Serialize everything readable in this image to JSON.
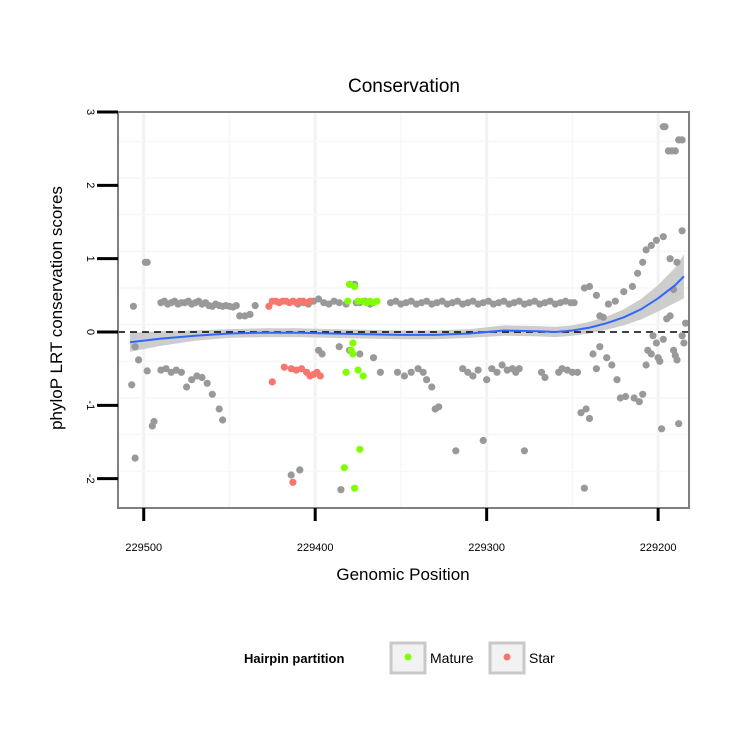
{
  "chart_data": {
    "type": "scatter",
    "title": "Conservation",
    "xlabel": "Genomic Position",
    "ylabel": "phyloP LRT conservation scores",
    "x_reversed": true,
    "xlim": [
      229182,
      229515
    ],
    "ylim": [
      -2.4,
      3.0
    ],
    "x_ticks": [
      229500,
      229400,
      229300,
      229200
    ],
    "x_tick_labels": [
      "229500",
      "229400",
      "229300",
      "229200"
    ],
    "y_ticks": [
      3,
      2,
      1,
      0,
      -1,
      -2
    ],
    "y_tick_labels": [
      "3",
      "2",
      "1",
      "0",
      "-1",
      "-2"
    ],
    "grid": true,
    "reference_line": {
      "y": 0,
      "style": "dashed"
    },
    "legend": {
      "title": "Hairpin partition",
      "position": "bottom",
      "entries": [
        {
          "label": "Mature",
          "color": "#7FFF00"
        },
        {
          "label": "Star",
          "color": "#F8766D"
        }
      ]
    },
    "colors": {
      "other": "#999999",
      "mature": "#7FFF00",
      "star": "#F8766D",
      "smooth": "#3366FF",
      "ribbon": "#C8C8C8"
    },
    "series": [
      {
        "group": "other",
        "points": [
          [
            229506,
            0.35
          ],
          [
            229505,
            -0.2
          ],
          [
            229507,
            -0.72
          ],
          [
            229505,
            -1.72
          ],
          [
            229503,
            -0.38
          ],
          [
            229499,
            0.95
          ],
          [
            229498,
            0.95
          ],
          [
            229498,
            -0.53
          ],
          [
            229495,
            -1.28
          ],
          [
            229494,
            -1.22
          ],
          [
            229490,
            0.4
          ],
          [
            229488,
            0.42
          ],
          [
            229486,
            0.38
          ],
          [
            229484,
            0.4
          ],
          [
            229482,
            0.42
          ],
          [
            229480,
            0.38
          ],
          [
            229478,
            0.4
          ],
          [
            229476,
            0.4
          ],
          [
            229474,
            0.42
          ],
          [
            229472,
            0.38
          ],
          [
            229470,
            0.4
          ],
          [
            229468,
            0.42
          ],
          [
            229466,
            0.38
          ],
          [
            229464,
            0.4
          ],
          [
            229462,
            0.36
          ],
          [
            229460,
            0.35
          ],
          [
            229458,
            0.38
          ],
          [
            229456,
            0.36
          ],
          [
            229454,
            0.35
          ],
          [
            229452,
            0.36
          ],
          [
            229450,
            0.35
          ],
          [
            229448,
            0.34
          ],
          [
            229446,
            0.36
          ],
          [
            229490,
            -0.52
          ],
          [
            229487,
            -0.5
          ],
          [
            229484,
            -0.55
          ],
          [
            229481,
            -0.52
          ],
          [
            229478,
            -0.55
          ],
          [
            229475,
            -0.75
          ],
          [
            229472,
            -0.65
          ],
          [
            229469,
            -0.6
          ],
          [
            229466,
            -0.62
          ],
          [
            229463,
            -0.7
          ],
          [
            229460,
            -0.85
          ],
          [
            229456,
            -1.05
          ],
          [
            229454,
            -1.2
          ],
          [
            229444,
            0.22
          ],
          [
            229441,
            0.22
          ],
          [
            229438,
            0.24
          ],
          [
            229435,
            0.36
          ],
          [
            229410,
            0.38
          ],
          [
            229407,
            0.4
          ],
          [
            229404,
            0.38
          ],
          [
            229401,
            0.42
          ],
          [
            229398,
            0.45
          ],
          [
            229395,
            0.4
          ],
          [
            229392,
            0.38
          ],
          [
            229389,
            0.42
          ],
          [
            229386,
            0.4
          ],
          [
            229382,
            0.38
          ],
          [
            229380,
            0.65
          ],
          [
            229377,
            0.65
          ],
          [
            229376,
            0.4
          ],
          [
            229374,
            0.4
          ],
          [
            229371,
            0.42
          ],
          [
            229368,
            0.38
          ],
          [
            229356,
            0.4
          ],
          [
            229353,
            0.42
          ],
          [
            229350,
            0.38
          ],
          [
            229347,
            0.4
          ],
          [
            229344,
            0.42
          ],
          [
            229341,
            0.38
          ],
          [
            229338,
            0.4
          ],
          [
            229335,
            0.42
          ],
          [
            229332,
            0.38
          ],
          [
            229329,
            0.4
          ],
          [
            229326,
            0.42
          ],
          [
            229323,
            0.38
          ],
          [
            229320,
            0.4
          ],
          [
            229317,
            0.42
          ],
          [
            229314,
            0.38
          ],
          [
            229311,
            0.4
          ],
          [
            229308,
            0.42
          ],
          [
            229305,
            0.38
          ],
          [
            229302,
            0.4
          ],
          [
            229299,
            0.42
          ],
          [
            229296,
            0.38
          ],
          [
            229293,
            0.4
          ],
          [
            229290,
            0.42
          ],
          [
            229287,
            0.38
          ],
          [
            229284,
            0.4
          ],
          [
            229281,
            0.42
          ],
          [
            229278,
            0.38
          ],
          [
            229275,
            0.4
          ],
          [
            229272,
            0.42
          ],
          [
            229269,
            0.38
          ],
          [
            229266,
            0.4
          ],
          [
            229263,
            0.42
          ],
          [
            229260,
            0.38
          ],
          [
            229257,
            0.4
          ],
          [
            229254,
            0.42
          ],
          [
            229251,
            0.4
          ],
          [
            229249,
            0.4
          ],
          [
            229398,
            -0.25
          ],
          [
            229396,
            -0.3
          ],
          [
            229386,
            -0.2
          ],
          [
            229380,
            -0.25
          ],
          [
            229374,
            -0.3
          ],
          [
            229366,
            -0.35
          ],
          [
            229362,
            -0.55
          ],
          [
            229352,
            -0.55
          ],
          [
            229348,
            -0.6
          ],
          [
            229344,
            -0.55
          ],
          [
            229340,
            -0.5
          ],
          [
            229337,
            -0.55
          ],
          [
            229335,
            -0.65
          ],
          [
            229332,
            -0.75
          ],
          [
            229330,
            -1.05
          ],
          [
            229328,
            -1.02
          ],
          [
            229318,
            -1.62
          ],
          [
            229314,
            -0.5
          ],
          [
            229311,
            -0.55
          ],
          [
            229308,
            -0.6
          ],
          [
            229305,
            -0.52
          ],
          [
            229302,
            -1.48
          ],
          [
            229300,
            -0.65
          ],
          [
            229297,
            -0.5
          ],
          [
            229294,
            -0.55
          ],
          [
            229291,
            -0.45
          ],
          [
            229288,
            -0.52
          ],
          [
            229285,
            -0.5
          ],
          [
            229283,
            -0.55
          ],
          [
            229281,
            -0.5
          ],
          [
            229278,
            -1.62
          ],
          [
            229268,
            -0.55
          ],
          [
            229266,
            -0.62
          ],
          [
            229258,
            -0.55
          ],
          [
            229256,
            -0.5
          ],
          [
            229253,
            -0.52
          ],
          [
            229250,
            -0.55
          ],
          [
            229247,
            -0.55
          ],
          [
            229245,
            -1.1
          ],
          [
            229243,
            -2.13
          ],
          [
            229242,
            -1.05
          ],
          [
            229240,
            -1.18
          ],
          [
            229238,
            -0.3
          ],
          [
            229236,
            -0.5
          ],
          [
            229234,
            -0.2
          ],
          [
            229230,
            -0.35
          ],
          [
            229227,
            -0.45
          ],
          [
            229224,
            -0.65
          ],
          [
            229222,
            -0.9
          ],
          [
            229219,
            -0.88
          ],
          [
            229214,
            -0.9
          ],
          [
            229211,
            -0.95
          ],
          [
            229209,
            -0.85
          ],
          [
            229207,
            -0.45
          ],
          [
            229206,
            -0.25
          ],
          [
            229204,
            -0.3
          ],
          [
            229203,
            -0.05
          ],
          [
            229201,
            -0.15
          ],
          [
            229200,
            -0.35
          ],
          [
            229199,
            -0.4
          ],
          [
            229198,
            -1.32
          ],
          [
            229197,
            -0.1
          ],
          [
            229195,
            0.18
          ],
          [
            229193,
            0.22
          ],
          [
            229191,
            -0.25
          ],
          [
            229190,
            -0.32
          ],
          [
            229189,
            -0.38
          ],
          [
            229188,
            -1.25
          ],
          [
            229186,
            -0.05
          ],
          [
            229185,
            -0.15
          ],
          [
            229243,
            0.6
          ],
          [
            229240,
            0.62
          ],
          [
            229236,
            0.5
          ],
          [
            229234,
            0.22
          ],
          [
            229232,
            0.2
          ],
          [
            229229,
            0.38
          ],
          [
            229225,
            0.42
          ],
          [
            229220,
            0.55
          ],
          [
            229215,
            0.62
          ],
          [
            229212,
            0.8
          ],
          [
            229209,
            0.95
          ],
          [
            229207,
            1.12
          ],
          [
            229204,
            1.18
          ],
          [
            229201,
            1.25
          ],
          [
            229197,
            1.3
          ],
          [
            229193,
            1.0
          ],
          [
            229191,
            0.58
          ],
          [
            229189,
            0.95
          ],
          [
            229186,
            1.38
          ],
          [
            229184,
            0.12
          ],
          [
            229197,
            2.8
          ],
          [
            229196,
            2.8
          ],
          [
            229194,
            2.47
          ],
          [
            229192,
            2.47
          ],
          [
            229190,
            2.47
          ],
          [
            229188,
            2.62
          ],
          [
            229186,
            2.62
          ],
          [
            229414,
            -1.95
          ],
          [
            229409,
            -1.88
          ],
          [
            229385,
            -2.15
          ]
        ]
      },
      {
        "group": "mature",
        "points": [
          [
            229380,
            0.65
          ],
          [
            229377,
            0.62
          ],
          [
            229381,
            0.42
          ],
          [
            229375,
            0.42
          ],
          [
            229372,
            0.42
          ],
          [
            229370,
            0.4
          ],
          [
            229368,
            0.42
          ],
          [
            229366,
            0.4
          ],
          [
            229364,
            0.42
          ],
          [
            229378,
            -0.15
          ],
          [
            229379,
            -0.25
          ],
          [
            229378,
            -0.3
          ],
          [
            229382,
            -0.55
          ],
          [
            229375,
            -0.52
          ],
          [
            229372,
            -0.6
          ],
          [
            229374,
            -1.6
          ],
          [
            229383,
            -1.85
          ],
          [
            229377,
            -2.13
          ]
        ]
      },
      {
        "group": "star",
        "points": [
          [
            229427,
            0.35
          ],
          [
            229425,
            0.42
          ],
          [
            229423,
            0.42
          ],
          [
            229421,
            0.4
          ],
          [
            229419,
            0.42
          ],
          [
            229417,
            0.42
          ],
          [
            229415,
            0.4
          ],
          [
            229413,
            0.42
          ],
          [
            229411,
            0.4
          ],
          [
            229409,
            0.42
          ],
          [
            229407,
            0.42
          ],
          [
            229405,
            0.4
          ],
          [
            229403,
            0.42
          ],
          [
            229418,
            -0.48
          ],
          [
            229414,
            -0.5
          ],
          [
            229411,
            -0.52
          ],
          [
            229408,
            -0.5
          ],
          [
            229405,
            -0.55
          ],
          [
            229403,
            -0.6
          ],
          [
            229401,
            -0.58
          ],
          [
            229399,
            -0.55
          ],
          [
            229397,
            -0.6
          ],
          [
            229425,
            -0.68
          ],
          [
            229413,
            -2.05
          ]
        ]
      }
    ],
    "smooth": {
      "x": [
        229508,
        229490,
        229470,
        229450,
        229430,
        229410,
        229390,
        229370,
        229350,
        229330,
        229310,
        229290,
        229270,
        229260,
        229250,
        229240,
        229230,
        229220,
        229210,
        229200,
        229190,
        229185
      ],
      "y": [
        -0.14,
        -0.09,
        -0.05,
        -0.02,
        -0.01,
        -0.01,
        -0.02,
        -0.03,
        -0.04,
        -0.04,
        -0.02,
        0.02,
        0.01,
        0.0,
        0.02,
        0.06,
        0.12,
        0.2,
        0.31,
        0.46,
        0.64,
        0.76
      ],
      "lower": [
        -0.27,
        -0.19,
        -0.12,
        -0.08,
        -0.07,
        -0.07,
        -0.08,
        -0.09,
        -0.1,
        -0.1,
        -0.08,
        -0.05,
        -0.06,
        -0.07,
        -0.05,
        -0.02,
        0.03,
        0.09,
        0.17,
        0.28,
        0.4,
        0.46
      ],
      "upper": [
        -0.01,
        0.01,
        0.02,
        0.04,
        0.05,
        0.05,
        0.04,
        0.03,
        0.02,
        0.02,
        0.04,
        0.09,
        0.08,
        0.07,
        0.09,
        0.14,
        0.21,
        0.31,
        0.45,
        0.64,
        0.88,
        1.06
      ]
    }
  }
}
